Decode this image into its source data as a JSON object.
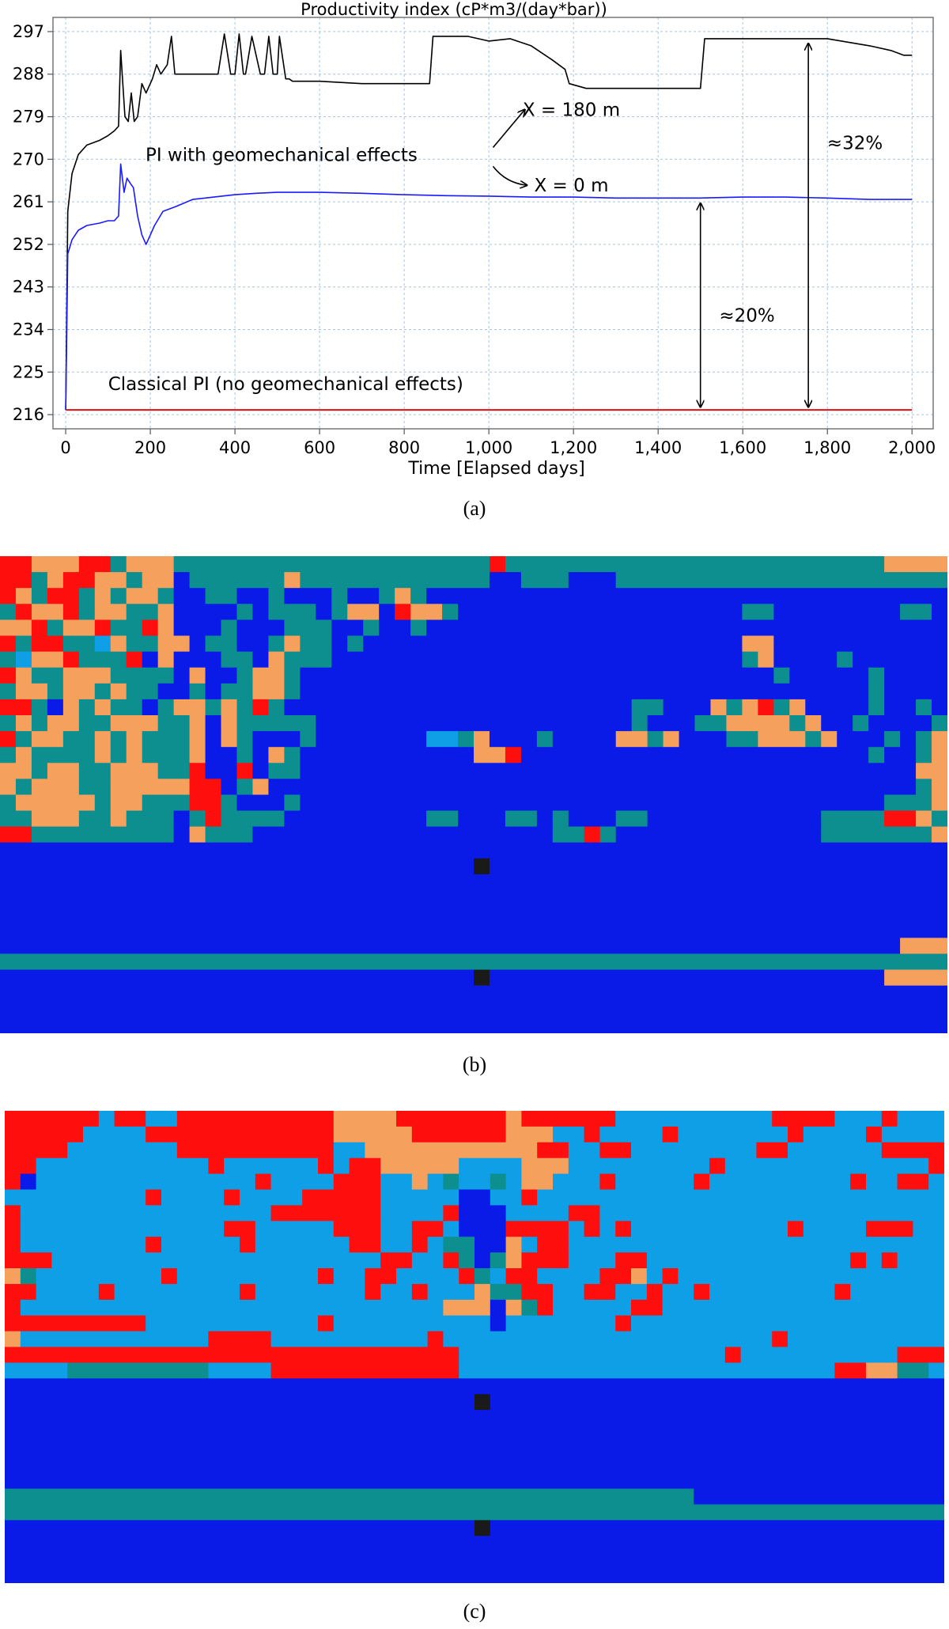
{
  "chart_data": {
    "type": "line",
    "title": "Productivity index (cP*m3/(day*bar))",
    "xlabel": "Time [Elapsed days]",
    "ylabel": "",
    "xlim": [
      -30,
      2050
    ],
    "ylim": [
      213,
      300
    ],
    "x_ticks": [
      0,
      200,
      400,
      600,
      800,
      1000,
      1200,
      1400,
      1600,
      1800,
      2000
    ],
    "x_tick_labels": [
      "0",
      "200",
      "400",
      "600",
      "800",
      "1,000",
      "1,200",
      "1,400",
      "1,600",
      "1,800",
      "2,000"
    ],
    "y_ticks": [
      216,
      225,
      234,
      243,
      252,
      261,
      270,
      279,
      288,
      297
    ],
    "y_tick_labels": [
      "216",
      "225",
      "234",
      "243",
      "252",
      "261",
      "270",
      "279",
      "288",
      "297"
    ],
    "grid": true,
    "series": [
      {
        "color": "#000000",
        "x": [
          0,
          5,
          15,
          30,
          50,
          80,
          100,
          115,
          125,
          130,
          140,
          148,
          155,
          162,
          170,
          180,
          190,
          205,
          215,
          225,
          240,
          250,
          258,
          265,
          280,
          300,
          330,
          360,
          375,
          390,
          400,
          410,
          420,
          425,
          440,
          460,
          470,
          480,
          490,
          500,
          505,
          520,
          528,
          536,
          560,
          600,
          700,
          800,
          860,
          868,
          880,
          950,
          1000,
          1050,
          1100,
          1150,
          1180,
          1190,
          1210,
          1230,
          1300,
          1400,
          1480,
          1500,
          1510,
          1540,
          1600,
          1700,
          1800,
          1900,
          1950,
          1980,
          2000
        ],
        "values": [
          217,
          259,
          267,
          271,
          273,
          274,
          275,
          276,
          277,
          293,
          279,
          278,
          284,
          278,
          279,
          286,
          284,
          287,
          290,
          288,
          290,
          296,
          288,
          288,
          288,
          288,
          288,
          288,
          296.5,
          288,
          288,
          296.5,
          288,
          288,
          296,
          288,
          288,
          296,
          288,
          288,
          296,
          287,
          287,
          286.5,
          286.5,
          286.5,
          286,
          286,
          286,
          296,
          296,
          296,
          295,
          295.5,
          294,
          291,
          289,
          286,
          285.5,
          285,
          285,
          285,
          285,
          285,
          295.5,
          295.5,
          295.5,
          295.5,
          295.5,
          294,
          293,
          292,
          292
        ]
      },
      {
        "color": "#1a1aff",
        "x": [
          0,
          5,
          15,
          30,
          50,
          80,
          100,
          115,
          125,
          130,
          138,
          145,
          152,
          160,
          170,
          180,
          190,
          200,
          210,
          230,
          260,
          300,
          350,
          400,
          450,
          500,
          600,
          700,
          800,
          900,
          1000,
          1100,
          1200,
          1300,
          1400,
          1500,
          1600,
          1700,
          1800,
          1900,
          2000
        ],
        "values": [
          217,
          250,
          253,
          255,
          256,
          256.5,
          257,
          257,
          258,
          269,
          263,
          266,
          265,
          264,
          258,
          254,
          252,
          254,
          256,
          259,
          260,
          261.5,
          262,
          262.5,
          262.8,
          263,
          263,
          262.8,
          262.5,
          262.3,
          262.2,
          262,
          262,
          261.8,
          261.8,
          261.8,
          262,
          262,
          261.8,
          261.5,
          261.5
        ]
      },
      {
        "color": "#e01010",
        "x": [
          0,
          2000
        ],
        "values": [
          217,
          217
        ]
      }
    ],
    "annotations": [
      {
        "text": "PI with geomechanical effects",
        "x": 510,
        "y": 271
      },
      {
        "text": "X = 180 m",
        "x": 1195,
        "y": 280.5
      },
      {
        "text": "X = 0 m",
        "x": 1195,
        "y": 264.5
      },
      {
        "text": "Classical PI (no geomechanical effects)",
        "x": 520,
        "y": 222.5
      },
      {
        "text": "≈32%",
        "x": 1865,
        "y": 273.5
      },
      {
        "text": "≈20%",
        "x": 1610,
        "y": 237
      }
    ]
  },
  "figure": {
    "caption_a": "(a)",
    "caption_b": "(b)",
    "caption_c": "(c)"
  },
  "colors": {
    "dark_blue": "#0a1be8",
    "light_blue": "#0e9fe6",
    "teal": "#0d8f8f",
    "orange": "#f6a05e",
    "red": "#ff0e0e",
    "black": "#1a1a1a"
  },
  "grid_b": {
    "cols": 60,
    "rows": 30,
    "cells": [
      "RRAAARRTAAATTTTTTTTTTTTTTTTTTTTRTTTTTTTTTTTTTTTTTTTTTTTTAAAA",
      "RRTARRAATAABTTTTTTATTTTTTTTTTTTBBTTTBBBTTTTTTTTTTTTTTTTTTTTT",
      "RATRRTATAATBBTTBBTBBBTBBTATBBBBBBBBBBBBBBBBBBBBBBBBBBBBBBBBB",
      "TRAARTAATTABBBBTBTTTBTAABRAATBBBBBBBBBBBBBBBBBBTTBBBBBBBBTTB",
      "AARTAARTTRABBBTBBBTTTBBTBBTBBBBBBBBBBBBBBBBBBBBBBBBBBBBBBBBB",
      "RTRRTTLATTAABTTBBTATTBTBBBBBBBBBBBBBBBBBBBBBBBBAABBBBBBBBBBB",
      "TLAARTTTRBABBBTTBATTTBBBBBBBBBBBBBBBBBBBBBBBBBBTABBBBTBBBBBB",
      "RATTAAATTTTBABBTAATBBBBBBBBBBBBBBBBBBBBBBBBBBBBBBTBBBBBTBBBB",
      "TAATAATATTBBTBTTAATBBBBBBBBBBBBBBBBBBBBBBBBBBBBBBBBBBBBTBBBB",
      "RRTBATATTBTAATATRTBBBBBBBBBBBBBBBBBBBBBBTTBBBATARTABBBBTBBTB",
      "TATAATTAAATTABATTTTTBBBBBBBBBBBBBBBBBBBBTBBBTTAAAATABBTBBBBT",
      "RTAATTATATTTABATBBBTBBBBBBBLLTABBBTBBBBAATABBBTTAAATABBBTBTA",
      "TATTTTATATTTABBTBATBBBBBBBBBBBAARBBBBBBBBBBBBBBBBBBBBBBTBBTA",
      "AATAATTAAATTRBBRBTTBBBBBBBBBBBBBBBBBBBBBBBBBBBBBBBBBBBBBBBAA",
      "ATAAATTAAAAARRBTABBBBBBBBBBBBBBBBBBBBBBBBBBBBBBBBBBBBBBBBBTA",
      "TAAAAATAATTTRRTBBBTBBBBBBBBBBBBBBBBBBBBBBBBBBBBBBBBBBBBBTTTA",
      "TTAAATTATTTBTRTTTTBBBBBBBBBTTBBBTTBTBBBTTBBBBBBBBBBBTTTTRRAT",
      "RRTTTTTTTTTBATTTBBBBBBBBBBBBBBBBBBBTTRTBBBBBBBBBBBBBTTTTTTTA",
      "BBBBBBBBBBBBBBBBBBBBBBBBBBBBBBBBBBBBBBBBBBBBBBBBBBBBBBBBBBBB",
      "BBBBBBBBBBBBBBBBBBBBBBBBBBBBBBKBBBBBBBBBBBBBBBBBBBBBBBBBBBBB",
      "BBBBBBBBBBBBBBBBBBBBBBBBBBBBBBBBBBBBBBBBBBBBBBBBBBBBBBBBBBBB",
      "BBBBBBBBBBBBBBBBBBBBBBBBBBBBBBBBBBBBBBBBBBBBBBBBBBBBBBBBBBBB",
      "BBBBBBBBBBBBBBBBBBBBBBBBBBBBBBBBBBBBBBBBBBBBBBBBBBBBBBBBBBBB",
      "BBBBBBBBBBBBBBBBBBBBBBBBBBBBBBBBBBBBBBBBBBBBBBBBBBBBBBBBBBBB",
      "BBBBBBBBBBBBBBBBBBBBBBBBBBBBBBBBBBBBBBBBBBBBBBBBBBBBBBBBBAAA",
      "TTTTTTTTTTTTTTTTTTTTTTTTTTTTTTTTTTTTTTTTTTTTTTTTTTTTTTTTTTTT",
      "BBBBBBBBBBBBBBBBBBBBBBBBBBBBBBKBBBBBBBBBBBBBBBBBBBBBBBBBAAAA",
      "BBBBBBBBBBBBBBBBBBBBBBBBBBBBBBBBBBBBBBBBBBBBBBBBBBBBBBBBBBBB",
      "BBBBBBBBBBBBBBBBBBBBBBBBBBBBBBBBBBBBBBBBBBBBBBBBBBBBBBBBBBBB",
      "BBBBBBBBBBBBBBBBBBBBBBBBBBBBBBBBBBBBBBBBBBBBBBBBBBBBBBBBBBBB"
    ]
  },
  "grid_c": {
    "cols": 60,
    "rows": 30,
    "cells": [
      "RRRRRRLRRLLRRRRRRRRRRAAAARRRRRRRARRRRRRLLLLLLLLLLRRRRLLLRLLL",
      "RRRRRLLLLRRRRRRRRRRRRAAAAARRRRRRAAALLRLLLLRLLLLLLLRLLLLRLLLL",
      "RRRRLLLLLLLRRRRRRRRRRLLAAAAAAAAAAARRLLRRLLLLLLLLRRLLLLLLRRRR",
      "RRLLLLLLLLLLLRLLLLLLRLRRAAAAALLLLAAALLLLLLLLLRLLLLLLLLLLLLLR",
      "RBLLLLLLLLLLLLLLRLLLLRRRLLALTLLTLAALLLRLLLLLRLLLLLLLLLRLLRRL",
      "LLLLLLLLLRLLLLRLLLLRRRRRLLLLLBBLLRLLLLLLLLLLLLLLLLLLLLLLLLLL",
      "RLLLLLLLLLLLLLLLLRRRRRRRLLLLRBBBLLLLRRLLLLLLLLLLLLLLLLLLLLLL",
      "RLLLLLLLLLLLLLRRLLLLLRRRLLRRLBBBRRRRLRLRLLLLLLLLLLRLLLLRRRLL",
      "RLLLLLLLLRLLLLLRLLLLLLRRLLRLTTBBALRRLLLLLLLLLLLLLLLLLLLLLLLL",
      "RRRLLLLLLLLLLLLLLLLLLLLLRRLLRTBTARRRLLLRRLLLLLLLLLLLLLRLRLLL",
      "ATLLLLLLLLRLLLLLLLLLRLLRRLLLLRTLRRLLLLRRALRLLLLLLLLLLLLLLLLL",
      "RRLLLLRLLLLLLLLRLLLLLLLRLLRLLLATTRRLLRRLLRLLRLLLLLLLLRLLLLLL",
      "RLLLLLLLLLLLLLLLLLLLLLLLLLLLAAABATRLLLLLRRLLLLLLLLLLLLLLLLLL",
      "RRRRRRRRRLLLLLLLLLLLRLLLLLLLLLLBLLLLLLLRLLLLLLLLLLLLLLLLLLLL",
      "ALLLLLLLLLLLLRRRRLLLLLLLLLLRLLLLLLLLLLLLLLLLLLLLLRLLLLLLLLLL",
      "RRRRRRRRRRRRRRRRRRRRRRRRRRRRRLLLLLLLLLLLLLLLLLRLLLLLLLLLLRRR",
      "LLLLTTTTTTTTTLLLLRRRRRRRRRRRRLLLLLLLLLLLLLLLLLLLLLLLLRRAATTL",
      "BBBBBBBBBBBBBBBBBBBBBBBBBBBBBBBBBBBBBBBBBBBBBBBBBBBBBBBBBBBB",
      "BBBBBBBBBBBBBBBBBBBBBBBBBBBBBBKBBBBBBBBBBBBBBBBBBBBBBBBBBBBB",
      "BBBBBBBBBBBBBBBBBBBBBBBBBBBBBBBBBBBBBBBBBBBBBBBBBBBBBBBBBBBB",
      "BBBBBBBBBBBBBBBBBBBBBBBBBBBBBBBBBBBBBBBBBBBBBBBBBBBBBBBBBBBB",
      "BBBBBBBBBBBBBBBBBBBBBBBBBBBBBBBBBBBBBBBBBBBBBBBBBBBBBBBBBBBB",
      "BBBBBBBBBBBBBBBBBBBBBBBBBBBBBBBBBBBBBBBBBBBBBBBBBBBBBBBBBBBB",
      "BBBBBBBBBBBBBBBBBBBBBBBBBBBBBBBBBBBBBBBBBBBBBBBBBBBBBBBBBBBB",
      "TTTTTTTTTTTTTTTTTTTTTTTTTTTTTTTTTTTTTTTTTTTTBBBBBBBBBBBBBBBB",
      "TTTTTTTTTTTTTTTTTTTTTTTTTTTTTTTTTTTTTTTTTTTTTTTTTTTTTTTTTTTT",
      "BBBBBBBBBBBBBBBBBBBBBBBBBBBBBBKBBBBBBBBBBBBBBBBBBBBBBBBBBBBB",
      "BBBBBBBBBBBBBBBBBBBBBBBBBBBBBBBBBBBBBBBBBBBBBBBBBBBBBBBBBBBB",
      "BBBBBBBBBBBBBBBBBBBBBBBBBBBBBBBBBBBBBBBBBBBBBBBBBBBBBBBBBBBB",
      "BBBBBBBBBBBBBBBBBBBBBBBBBBBBBBBBBBBBBBBBBBBBBBBBBBBBBBBBBBBB"
    ]
  }
}
